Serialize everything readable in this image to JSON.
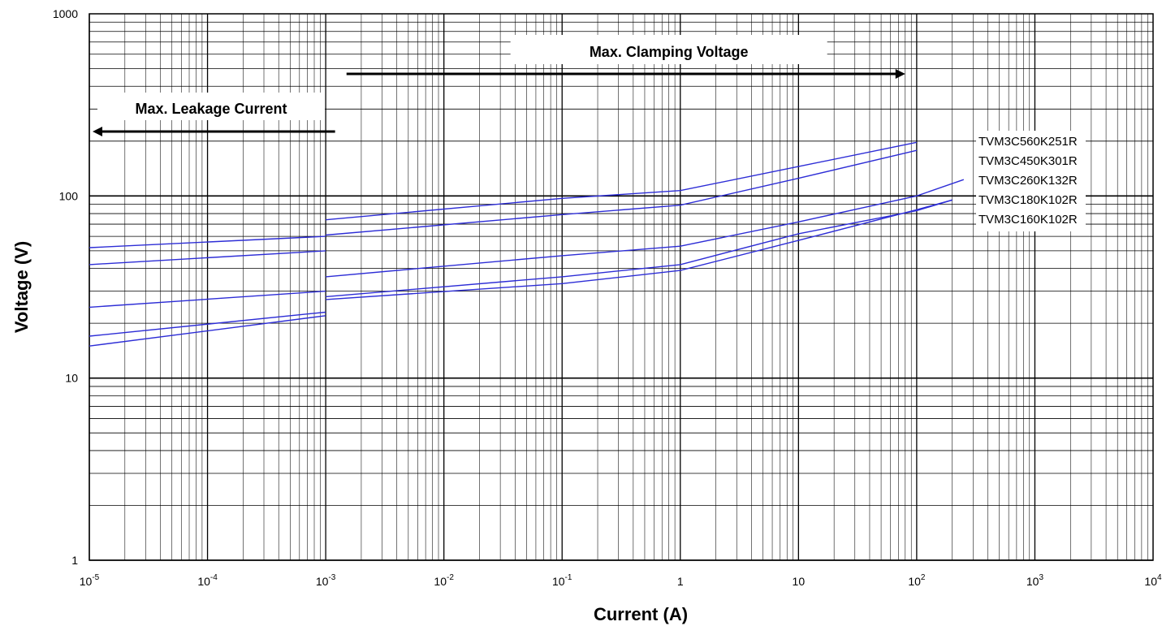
{
  "chart_data": {
    "type": "line",
    "xlabel": "Current (A)",
    "ylabel": "Voltage (V)",
    "x_scale": "log",
    "y_scale": "log",
    "xlim": [
      1e-05,
      10000
    ],
    "ylim": [
      1,
      1000
    ],
    "x_ticks": [
      {
        "value": 1e-05,
        "base": "10",
        "exp": "-5"
      },
      {
        "value": 0.0001,
        "base": "10",
        "exp": "-4"
      },
      {
        "value": 0.001,
        "base": "10",
        "exp": "-3"
      },
      {
        "value": 0.01,
        "base": "10",
        "exp": "-2"
      },
      {
        "value": 0.1,
        "base": "10",
        "exp": "-1"
      },
      {
        "value": 1,
        "base": "1",
        "exp": ""
      },
      {
        "value": 10,
        "base": "10",
        "exp": ""
      },
      {
        "value": 100,
        "base": "10",
        "exp": "2"
      },
      {
        "value": 1000,
        "base": "10",
        "exp": "3"
      },
      {
        "value": 10000,
        "base": "10",
        "exp": "4"
      }
    ],
    "y_ticks": [
      {
        "value": 1,
        "label": "1"
      },
      {
        "value": 10,
        "label": "10"
      },
      {
        "value": 100,
        "label": "100"
      },
      {
        "value": 1000,
        "label": "1000"
      }
    ],
    "grid": true,
    "line_color": "#2d2dd6",
    "annotations": {
      "clamping": {
        "label": "Max. Clamping Voltage",
        "arrow_from": 0.0015,
        "arrow_to": 80,
        "direction": "right"
      },
      "leakage": {
        "label": "Max. Leakage Current",
        "arrow_from": 0.0012,
        "arrow_to": 1e-05,
        "direction": "left"
      }
    },
    "legend": {
      "placement": "right",
      "entries": [
        "TVM3C560K251R",
        "TVM3C450K301R",
        "TVM3C260K132R",
        "TVM3C180K102R",
        "TVM3C160K102R"
      ]
    },
    "series": [
      {
        "name": "TVM3C560K251R",
        "leakage": [
          [
            1e-05,
            52
          ],
          [
            0.001,
            60
          ]
        ],
        "clamping": [
          [
            0.001,
            74
          ],
          [
            0.1,
            97
          ],
          [
            1,
            107
          ],
          [
            10,
            145
          ],
          [
            100,
            197
          ]
        ]
      },
      {
        "name": "TVM3C450K301R",
        "leakage": [
          [
            1e-05,
            42
          ],
          [
            0.001,
            50
          ]
        ],
        "clamping": [
          [
            0.001,
            61
          ],
          [
            0.1,
            79
          ],
          [
            1,
            89
          ],
          [
            10,
            125
          ],
          [
            100,
            178
          ]
        ]
      },
      {
        "name": "TVM3C260K132R",
        "leakage": [
          [
            1e-05,
            24.5
          ],
          [
            0.001,
            30
          ]
        ],
        "clamping": [
          [
            0.001,
            36
          ],
          [
            0.1,
            47
          ],
          [
            1,
            53
          ],
          [
            10,
            72
          ],
          [
            100,
            100
          ],
          [
            250,
            123
          ]
        ]
      },
      {
        "name": "TVM3C180K102R",
        "leakage": [
          [
            1e-05,
            17
          ],
          [
            0.0007,
            22.5
          ],
          [
            0.001,
            23
          ]
        ],
        "clamping": [
          [
            0.001,
            28
          ],
          [
            0.1,
            36
          ],
          [
            1,
            42
          ],
          [
            10,
            62
          ],
          [
            100,
            83
          ],
          [
            200,
            95
          ]
        ]
      },
      {
        "name": "TVM3C160K102R",
        "leakage": [
          [
            1e-05,
            15
          ],
          [
            0.001,
            22
          ]
        ],
        "clamping": [
          [
            0.001,
            27
          ],
          [
            0.1,
            33
          ],
          [
            1,
            39
          ],
          [
            10,
            57
          ],
          [
            100,
            84
          ],
          [
            200,
            95
          ]
        ]
      }
    ]
  }
}
